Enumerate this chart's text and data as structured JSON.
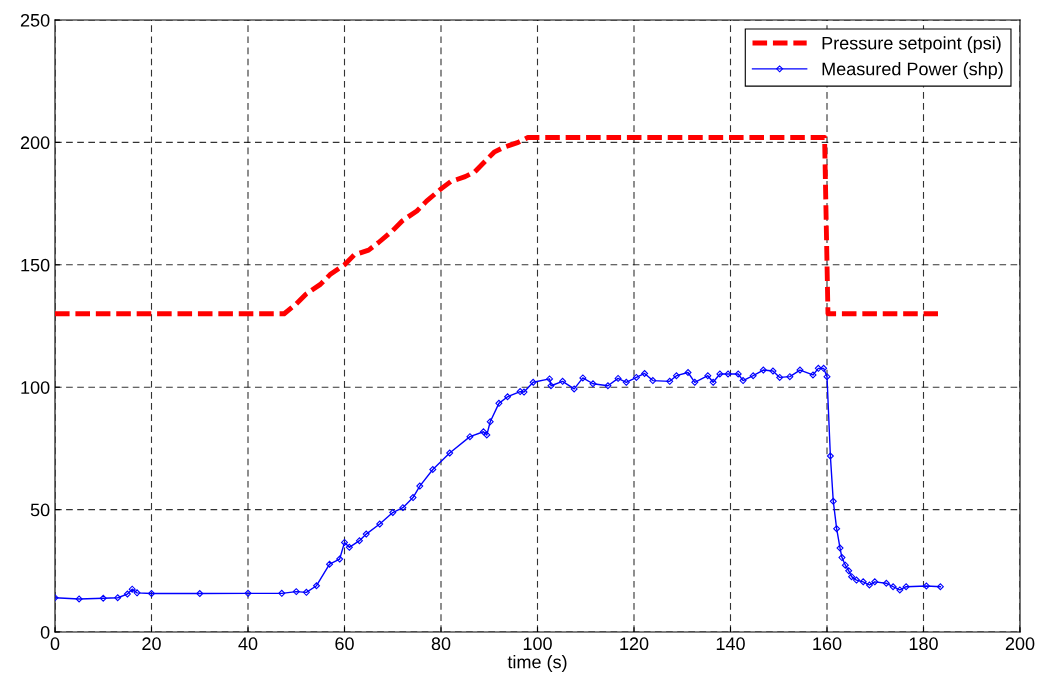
{
  "chart_data": {
    "type": "line",
    "xlabel": "time (s)",
    "xlim": [
      0,
      200
    ],
    "ylim": [
      0,
      250
    ],
    "xticks": [
      0,
      20,
      40,
      60,
      80,
      100,
      120,
      140,
      160,
      180,
      200
    ],
    "yticks": [
      0,
      50,
      100,
      150,
      200,
      250
    ],
    "grid": true,
    "legend": "top right",
    "series": [
      {
        "name": "Pressure setpoint (psi)",
        "color": "#ff0000",
        "line_style": "dashed",
        "marker": "none",
        "x": [
          0,
          47.5,
          50,
          52,
          55,
          57,
          60,
          62,
          65,
          67,
          70,
          72,
          75,
          77,
          80,
          82,
          85,
          87,
          89,
          91,
          93,
          96,
          98,
          159.5,
          160.2,
          183
        ],
        "values": [
          130,
          130,
          134,
          138,
          142,
          146,
          150,
          154,
          156,
          159,
          164,
          168,
          172,
          176,
          181,
          184,
          186,
          188,
          192,
          196,
          198,
          200,
          202,
          202,
          130,
          130
        ]
      },
      {
        "name": "Measured Power (shp)",
        "color": "#0000ff",
        "line_style": "solid",
        "marker": "diamond",
        "x": [
          0,
          5,
          10,
          13,
          15,
          16,
          17,
          20,
          30,
          40,
          47,
          50,
          52.1,
          54.2,
          56.9,
          59,
          60,
          61,
          63.1,
          64.5,
          67.3,
          70,
          72.1,
          74.2,
          75.6,
          78.3,
          81.8,
          86,
          88.8,
          89.5,
          90.2,
          92,
          93.8,
          96.4,
          97.2,
          99.1,
          102.5,
          102.8,
          105.2,
          107.6,
          109.4,
          111.5,
          114.6,
          116.7,
          118.4,
          120.5,
          122.2,
          123.9,
          127.4,
          128.8,
          131.2,
          132.6,
          135.3,
          136.4,
          137.8,
          139.5,
          141.6,
          142.6,
          144.7,
          146.8,
          148.8,
          150.2,
          152.3,
          154.4,
          157.1,
          158.2,
          159.3,
          160,
          160.7,
          161.3,
          162,
          162.7,
          163.1,
          163.8,
          164.5,
          165.1,
          166.1,
          167.5,
          168.8,
          169.9,
          172.3,
          173.7,
          175.1,
          176.4,
          180.6,
          183.5
        ],
        "values": [
          14,
          13.5,
          13.8,
          14,
          15.5,
          17.5,
          16,
          15.7,
          15.7,
          15.8,
          15.8,
          16.5,
          16.2,
          18.9,
          27.7,
          29.8,
          36.6,
          34.6,
          37.3,
          40,
          44.1,
          48.8,
          50.8,
          54.9,
          59.6,
          66.4,
          73.1,
          79.8,
          81.8,
          80.5,
          85.9,
          93.4,
          96.1,
          98.2,
          98,
          102,
          103.4,
          100.6,
          102.4,
          99.3,
          103.8,
          101.4,
          100.6,
          103.6,
          102,
          104,
          105.6,
          102.7,
          102.4,
          104.7,
          106,
          102,
          104.7,
          102,
          105.4,
          105.4,
          105.4,
          102.7,
          104.7,
          107,
          106.6,
          104,
          104.3,
          107,
          105,
          107.7,
          107.7,
          104.3,
          71.9,
          53.4,
          42.2,
          34.3,
          30.4,
          27.3,
          25,
          22.6,
          21.2,
          20.5,
          19.2,
          20.5,
          19.9,
          18.5,
          17.2,
          18.5,
          18.8,
          18.5
        ]
      }
    ]
  }
}
